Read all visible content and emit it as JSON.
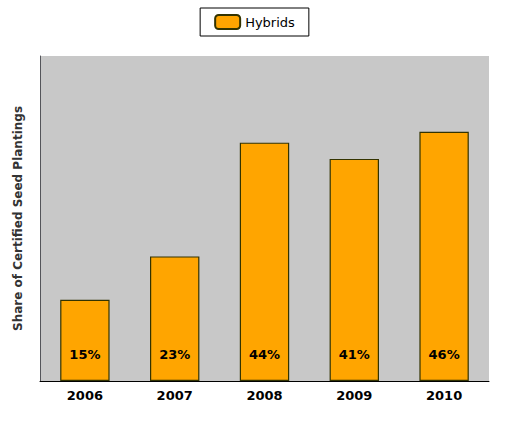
{
  "chart_data": {
    "type": "bar",
    "categories": [
      "2006",
      "2007",
      "2008",
      "2009",
      "2010"
    ],
    "series": [
      {
        "name": "Hybrids",
        "color": "#FFA500",
        "values": [
          15,
          23,
          44,
          41,
          46
        ],
        "value_labels": [
          "15%",
          "23%",
          "44%",
          "41%",
          "46%"
        ]
      }
    ],
    "ylabel": "Share of Certified Seed Plantings",
    "ylim": [
      0,
      60
    ],
    "yticks": [],
    "tick_labels": "x",
    "data_labels": true,
    "legend": "top",
    "grid": false
  }
}
